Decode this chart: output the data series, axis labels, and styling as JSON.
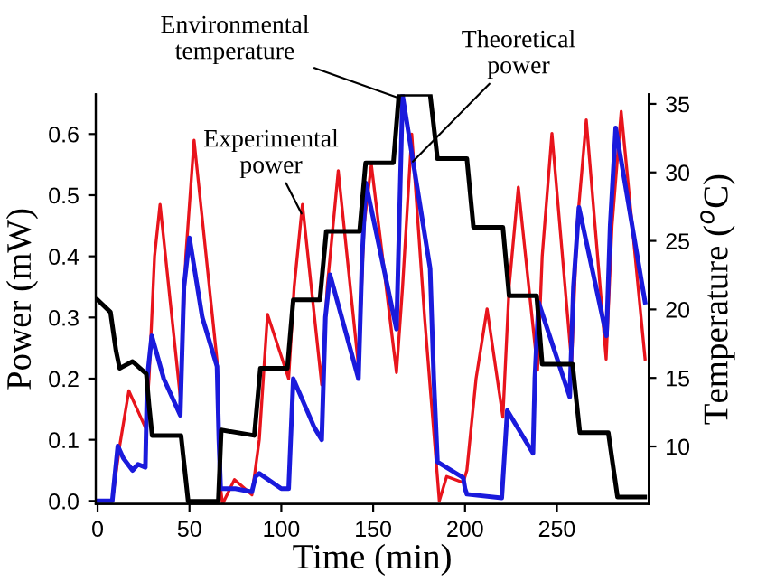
{
  "chart_data": {
    "type": "line",
    "xlabel": "Time (min)",
    "ylabel": "Power (mW)",
    "y2label": "Temperature ($^{o}$C)",
    "xlim": [
      -1,
      300
    ],
    "xticks": [
      0,
      50,
      100,
      150,
      200,
      250
    ],
    "ylim": [
      -0.005,
      0.665
    ],
    "yticks": [
      {
        "value": 0,
        "label": "0.0"
      },
      {
        "value": 0.1,
        "label": "0.1"
      },
      {
        "value": 0.2,
        "label": "0.2"
      },
      {
        "value": 0.3,
        "label": "0.3"
      },
      {
        "value": 0.4,
        "label": "0.4"
      },
      {
        "value": 0.5,
        "label": "0.5"
      },
      {
        "value": 0.6,
        "label": "0.6"
      }
    ],
    "y2lim": [
      5.8,
      35.7
    ],
    "y2ticks": [
      10,
      15,
      20,
      25,
      30,
      35
    ],
    "grid": false,
    "legend": false,
    "marker": "none",
    "line_style": "solid",
    "series": [
      {
        "color": "#e8141c",
        "x": [
          0,
          8,
          12,
          17,
          26,
          28,
          31,
          34,
          45,
          48,
          52.5,
          65,
          67,
          68,
          74.5,
          84,
          88,
          92.5,
          104,
          107,
          111.5,
          122,
          125,
          131,
          142,
          145,
          149,
          162.7,
          166,
          171,
          178,
          186,
          190,
          199,
          201,
          206,
          212,
          220.6,
          224,
          229,
          239.5,
          242,
          247.3,
          258,
          261,
          266,
          276.8,
          280,
          285,
          298
        ],
        "values": [
          0,
          0,
          0.09,
          0.18,
          0.12,
          0.2,
          0.4,
          0.485,
          0.17,
          0.4,
          0.59,
          0.23,
          0.02,
          -0.005,
          0.035,
          0.01,
          0.1,
          0.305,
          0.2,
          0.35,
          0.485,
          0.19,
          0.35,
          0.54,
          0.22,
          0.45,
          0.55,
          0.21,
          0.35,
          0.6,
          0.3,
          0,
          0.04,
          0.03,
          0.05,
          0.2,
          0.314,
          0.137,
          0.35,
          0.513,
          0.214,
          0.4,
          0.601,
          0.226,
          0.45,
          0.623,
          0.232,
          0.45,
          0.637,
          0.232
        ]
      },
      {
        "color": "#1a1adc",
        "x": [
          0,
          8,
          11,
          14,
          19,
          22,
          26,
          27,
          29.5,
          36,
          45,
          47,
          50,
          57,
          65,
          66,
          67,
          75,
          84,
          86,
          88,
          100,
          104,
          106.5,
          118,
          122,
          124,
          126.5,
          142,
          144,
          146,
          162.7,
          166,
          181,
          183,
          185,
          199,
          200,
          201,
          220,
          222,
          223,
          237,
          238,
          240,
          257,
          259,
          262,
          277,
          279,
          282,
          298
        ],
        "values": [
          0,
          0,
          0.09,
          0.07,
          0.05,
          0.06,
          0.055,
          0.2,
          0.27,
          0.2,
          0.14,
          0.35,
          0.43,
          0.3,
          0.22,
          0.1,
          0.02,
          0.02,
          0.015,
          0.04,
          0.045,
          0.02,
          0.02,
          0.2,
          0.12,
          0.1,
          0.3,
          0.37,
          0.2,
          0.4,
          0.52,
          0.281,
          0.663,
          0.38,
          0.2,
          0.064,
          0.038,
          0.02,
          0.011,
          0.005,
          0.1,
          0.148,
          0.078,
          0.2,
          0.325,
          0.17,
          0.35,
          0.48,
          0.27,
          0.45,
          0.61,
          0.325
        ]
      },
      {
        "color": "#000000",
        "axis": "y2",
        "x": [
          0,
          7,
          10,
          12,
          19,
          26.5,
          28,
          29.7,
          45.4,
          49.3,
          65.7,
          67.3,
          85.3,
          88.6,
          103.3,
          106.5,
          121,
          124.5,
          142.6,
          145.9,
          161,
          164,
          181,
          185,
          201,
          204.6,
          220.6,
          224,
          239,
          242,
          258.5,
          262.5,
          278,
          283,
          297.8
        ],
        "values": [
          20.7,
          19.8,
          17,
          15.7,
          16.2,
          15.3,
          13,
          10.8,
          10.8,
          6,
          6,
          11.2,
          10.8,
          15.7,
          15.7,
          20.7,
          20.7,
          25.7,
          25.7,
          30.7,
          30.7,
          35.7,
          35.7,
          31,
          31,
          26,
          26,
          21,
          21,
          16,
          16,
          11,
          11,
          6.3,
          6.3
        ]
      }
    ],
    "annotations": [
      {
        "text": "Environmental\ntemperature",
        "x": 163,
        "y": 0.66
      },
      {
        "text": "Theoretical\npower",
        "x": 171.6,
        "y": 0.555
      },
      {
        "text": "Experimental\npower",
        "x": 111,
        "y": 0.47
      }
    ]
  }
}
